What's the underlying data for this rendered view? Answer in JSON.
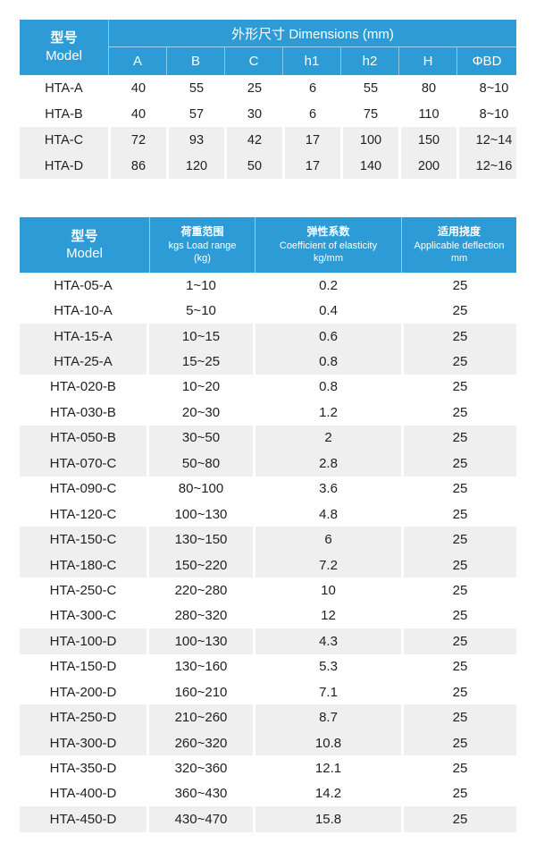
{
  "colors": {
    "header_blue": "#2D9BD6",
    "stripe_gray": "#EFEFF0",
    "text_dark": "#232021",
    "header_text": "#FFFFFF"
  },
  "dimensions_table": {
    "model_header": {
      "zh": "型号",
      "en": "Model"
    },
    "group_header": "外形尺寸 Dimensions (mm)",
    "columns": [
      "A",
      "B",
      "C",
      "h1",
      "h2",
      "H",
      "ΦBD"
    ],
    "rows": [
      {
        "model": "HTA-A",
        "a": "40",
        "b": "55",
        "c": "25",
        "h1": "6",
        "h2": "55",
        "h": "80",
        "bd": "8~10",
        "shaded": false
      },
      {
        "model": "HTA-B",
        "a": "40",
        "b": "57",
        "c": "30",
        "h1": "6",
        "h2": "75",
        "h": "110",
        "bd": "8~10",
        "shaded": false
      },
      {
        "model": "HTA-C",
        "a": "72",
        "b": "93",
        "c": "42",
        "h1": "17",
        "h2": "100",
        "h": "150",
        "bd": "12~14",
        "shaded": true
      },
      {
        "model": "HTA-D",
        "a": "86",
        "b": "120",
        "c": "50",
        "h1": "17",
        "h2": "140",
        "h": "200",
        "bd": "12~16",
        "shaded": true
      }
    ]
  },
  "spec_table": {
    "model_header": {
      "zh": "型号",
      "en": "Model"
    },
    "columns": [
      {
        "zh": "荷重范围",
        "en": "kgs Load range",
        "unit": "(kg)"
      },
      {
        "zh": "弹性系数",
        "en": "Coefficient of elasticity",
        "unit": "kg/mm"
      },
      {
        "zh": "适用挠度",
        "en": "Applicable deflection",
        "unit": "mm"
      }
    ],
    "rows": [
      {
        "model": "HTA-05-A",
        "load": "1~10",
        "coeff": "0.2",
        "defl": "25",
        "shaded": false
      },
      {
        "model": "HTA-10-A",
        "load": "5~10",
        "coeff": "0.4",
        "defl": "25",
        "shaded": false
      },
      {
        "model": "HTA-15-A",
        "load": "10~15",
        "coeff": "0.6",
        "defl": "25",
        "shaded": true
      },
      {
        "model": "HTA-25-A",
        "load": "15~25",
        "coeff": "0.8",
        "defl": "25",
        "shaded": true
      },
      {
        "model": "HTA-020-B",
        "load": "10~20",
        "coeff": "0.8",
        "defl": "25",
        "shaded": false
      },
      {
        "model": "HTA-030-B",
        "load": "20~30",
        "coeff": "1.2",
        "defl": "25",
        "shaded": false
      },
      {
        "model": "HTA-050-B",
        "load": "30~50",
        "coeff": "2",
        "defl": "25",
        "shaded": true
      },
      {
        "model": "HTA-070-C",
        "load": "50~80",
        "coeff": "2.8",
        "defl": "25",
        "shaded": true
      },
      {
        "model": "HTA-090-C",
        "load": "80~100",
        "coeff": "3.6",
        "defl": "25",
        "shaded": false
      },
      {
        "model": "HTA-120-C",
        "load": "100~130",
        "coeff": "4.8",
        "defl": "25",
        "shaded": false
      },
      {
        "model": "HTA-150-C",
        "load": "130~150",
        "coeff": "6",
        "defl": "25",
        "shaded": true
      },
      {
        "model": "HTA-180-C",
        "load": "150~220",
        "coeff": "7.2",
        "defl": "25",
        "shaded": true
      },
      {
        "model": "HTA-250-C",
        "load": "220~280",
        "coeff": "10",
        "defl": "25",
        "shaded": false
      },
      {
        "model": "HTA-300-C",
        "load": "280~320",
        "coeff": "12",
        "defl": "25",
        "shaded": false
      },
      {
        "model": "HTA-100-D",
        "load": "100~130",
        "coeff": "4.3",
        "defl": "25",
        "shaded": true
      },
      {
        "model": "HTA-150-D",
        "load": "130~160",
        "coeff": "5.3",
        "defl": "25",
        "shaded": false
      },
      {
        "model": "HTA-200-D",
        "load": "160~210",
        "coeff": "7.1",
        "defl": "25",
        "shaded": false
      },
      {
        "model": "HTA-250-D",
        "load": "210~260",
        "coeff": "8.7",
        "defl": "25",
        "shaded": true
      },
      {
        "model": "HTA-300-D",
        "load": "260~320",
        "coeff": "10.8",
        "defl": "25",
        "shaded": true
      },
      {
        "model": "HTA-350-D",
        "load": "320~360",
        "coeff": "12.1",
        "defl": "25",
        "shaded": false
      },
      {
        "model": "HTA-400-D",
        "load": "360~430",
        "coeff": "14.2",
        "defl": "25",
        "shaded": false
      },
      {
        "model": "HTA-450-D",
        "load": "430~470",
        "coeff": "15.8",
        "defl": "25",
        "shaded": true
      }
    ]
  }
}
